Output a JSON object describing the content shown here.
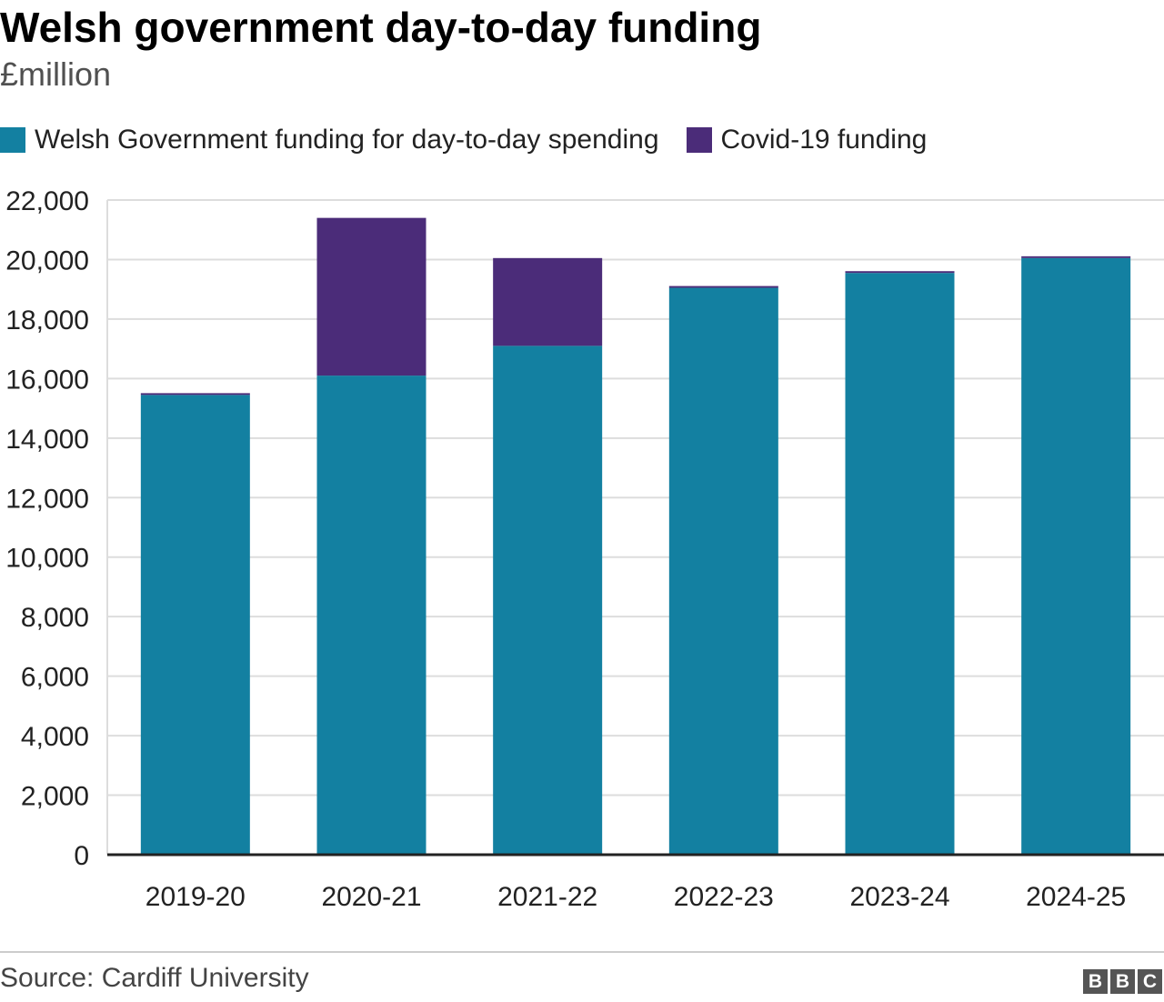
{
  "header": {
    "title": "Welsh government day-to-day funding",
    "subtitle": "£million"
  },
  "legend": {
    "items": [
      {
        "label": "Welsh Government funding for day-to-day spending",
        "color": "#1380A1"
      },
      {
        "label": "Covid-19 funding",
        "color": "#4B2C79"
      }
    ]
  },
  "chart_data": {
    "type": "bar",
    "stacked": true,
    "categories": [
      "2019-20",
      "2020-21",
      "2021-22",
      "2022-23",
      "2023-24",
      "2024-25"
    ],
    "series": [
      {
        "name": "Welsh Government funding for day-to-day spending",
        "color": "#1380A1",
        "values": [
          15450,
          16100,
          17100,
          19050,
          19550,
          20050
        ]
      },
      {
        "name": "Covid-19 funding",
        "color": "#4B2C79",
        "values": [
          60,
          5300,
          2950,
          60,
          60,
          60
        ]
      }
    ],
    "ylim": [
      0,
      22000
    ],
    "yticks": [
      0,
      2000,
      4000,
      6000,
      8000,
      10000,
      12000,
      14000,
      16000,
      18000,
      20000,
      22000
    ],
    "ytick_labels": [
      "0",
      "2,000",
      "4,000",
      "6,000",
      "8,000",
      "10,000",
      "12,000",
      "14,000",
      "16,000",
      "18,000",
      "20,000",
      "22,000"
    ],
    "grid": true,
    "legend_position": "top-left"
  },
  "footer": {
    "source": "Source: Cardiff University",
    "logo_letters": [
      "B",
      "B",
      "C"
    ]
  }
}
